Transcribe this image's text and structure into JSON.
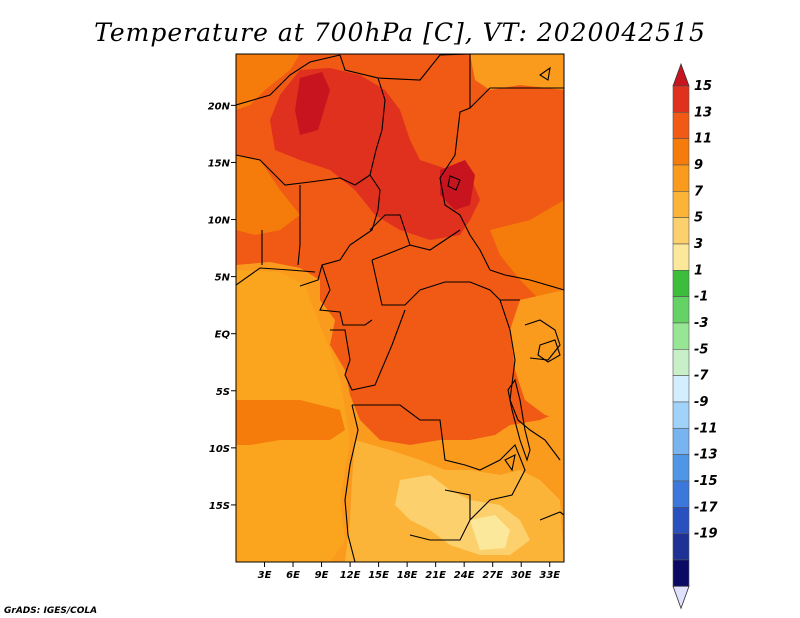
{
  "title": "Temperature at 700hPa [C], VT: 2020042515",
  "credit": "GrADS: IGES/COLA",
  "map": {
    "lon_range": [
      0,
      34.5
    ],
    "lat_range": [
      -20,
      24.5
    ],
    "lat_ticks": [
      {
        "value": 20,
        "label": "20N"
      },
      {
        "value": 15,
        "label": "15N"
      },
      {
        "value": 10,
        "label": "10N"
      },
      {
        "value": 5,
        "label": "5N"
      },
      {
        "value": 0,
        "label": "EQ"
      },
      {
        "value": -5,
        "label": "5S"
      },
      {
        "value": -10,
        "label": "10S"
      },
      {
        "value": -15,
        "label": "15S"
      }
    ],
    "lon_ticks": [
      {
        "value": 3,
        "label": "3E"
      },
      {
        "value": 6,
        "label": "6E"
      },
      {
        "value": 9,
        "label": "9E"
      },
      {
        "value": 12,
        "label": "12E"
      },
      {
        "value": 15,
        "label": "15E"
      },
      {
        "value": 18,
        "label": "18E"
      },
      {
        "value": 21,
        "label": "21E"
      },
      {
        "value": 24,
        "label": "24E"
      },
      {
        "value": 27,
        "label": "27E"
      },
      {
        "value": 30,
        "label": "30E"
      },
      {
        "value": 33,
        "label": "33E"
      }
    ]
  },
  "colorbar": {
    "labels": [
      "15",
      "13",
      "11",
      "9",
      "7",
      "5",
      "3",
      "1",
      "-1",
      "-3",
      "-5",
      "-7",
      "-9",
      "-11",
      "-13",
      "-15",
      "-17",
      "-19"
    ],
    "colors": [
      "#e0301e",
      "#f05a14",
      "#f57c0a",
      "#fa9b1e",
      "#fbb437",
      "#fdd06e",
      "#fbe89b",
      "#3cbe3c",
      "#64d264",
      "#96e696",
      "#c8f0c8",
      "#d2eeff",
      "#a0d2fa",
      "#78b4f0",
      "#5096e6",
      "#3c78dc",
      "#2850be",
      "#1e3296",
      "#0a0a64"
    ],
    "over_color": "#c8141e",
    "under_color": "#e0e0ff"
  },
  "legend_colors": {
    "c15": "#e0301e",
    "c13": "#f05a14",
    "c11": "#f57c0a",
    "c9": "#fa9b1e",
    "c7": "#fbb437",
    "c5": "#fdd06e",
    "c3": "#fbe89b"
  }
}
